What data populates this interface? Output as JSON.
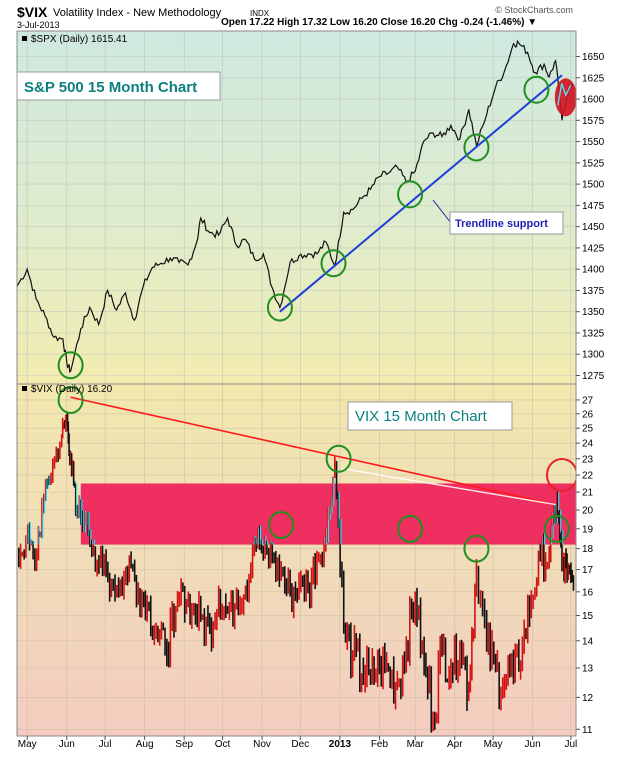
{
  "header": {
    "symbol": "$VIX",
    "name": "Volatility Index - New Methodology",
    "exchange": "INDX",
    "date": "3-Jul-2013",
    "ohlc_text": "Open 17.22  High 17.32  Low 16.20  Close 16.20  Chg -0.24 (-1.46%) ▼",
    "watermark": "© StockCharts.com"
  },
  "chart_data": [
    {
      "type": "line",
      "legend": "$SPX (Daily) 1615.41",
      "annotation": "S&P 500 15 Month Chart",
      "callout": "Trendline support",
      "ylim": [
        1265,
        1680
      ],
      "yticks": [
        1275,
        1300,
        1325,
        1350,
        1375,
        1400,
        1425,
        1450,
        1475,
        1500,
        1525,
        1550,
        1575,
        1600,
        1625,
        1650
      ],
      "x": [
        "2012-04-23",
        "2012-05-01",
        "2012-05-08",
        "2012-05-15",
        "2012-05-22",
        "2012-05-29",
        "2012-06-01",
        "2012-06-04",
        "2012-06-12",
        "2012-06-19",
        "2012-06-26",
        "2012-07-03",
        "2012-07-10",
        "2012-07-17",
        "2012-07-24",
        "2012-07-31",
        "2012-08-07",
        "2012-08-14",
        "2012-08-21",
        "2012-08-28",
        "2012-09-04",
        "2012-09-11",
        "2012-09-14",
        "2012-09-21",
        "2012-09-28",
        "2012-10-05",
        "2012-10-12",
        "2012-10-19",
        "2012-10-26",
        "2012-11-02",
        "2012-11-09",
        "2012-11-15",
        "2012-11-23",
        "2012-11-30",
        "2012-12-07",
        "2012-12-14",
        "2012-12-21",
        "2012-12-28",
        "2013-01-04",
        "2013-01-11",
        "2013-01-18",
        "2013-01-25",
        "2013-02-01",
        "2013-02-08",
        "2013-02-15",
        "2013-02-22",
        "2013-03-01",
        "2013-03-08",
        "2013-03-15",
        "2013-03-22",
        "2013-03-29",
        "2013-04-05",
        "2013-04-12",
        "2013-04-18",
        "2013-04-26",
        "2013-05-03",
        "2013-05-10",
        "2013-05-17",
        "2013-05-21",
        "2013-05-28",
        "2013-06-03",
        "2013-06-10",
        "2013-06-14",
        "2013-06-19",
        "2013-06-24",
        "2013-06-28",
        "2013-07-03"
      ],
      "values": [
        1380,
        1400,
        1365,
        1345,
        1320,
        1318,
        1290,
        1280,
        1330,
        1355,
        1335,
        1375,
        1352,
        1372,
        1340,
        1380,
        1402,
        1407,
        1413,
        1408,
        1405,
        1433,
        1460,
        1443,
        1440,
        1460,
        1428,
        1435,
        1412,
        1418,
        1378,
        1355,
        1408,
        1416,
        1418,
        1418,
        1432,
        1404,
        1467,
        1470,
        1483,
        1494,
        1509,
        1513,
        1520,
        1502,
        1515,
        1551,
        1560,
        1556,
        1569,
        1553,
        1588,
        1545,
        1582,
        1614,
        1633,
        1665,
        1666,
        1655,
        1631,
        1641,
        1626,
        1645,
        1575,
        1606,
        1615
      ],
      "trendline": {
        "x1": "2012-11-15",
        "y1": 1350,
        "x2": "2013-06-24",
        "y2": 1628,
        "color": "#1f3fd8"
      },
      "markers": [
        {
          "x": "2012-06-04",
          "y": 1287
        },
        {
          "x": "2012-11-15",
          "y": 1355
        },
        {
          "x": "2012-12-27",
          "y": 1407
        },
        {
          "x": "2013-02-25",
          "y": 1488
        },
        {
          "x": "2013-04-18",
          "y": 1543
        },
        {
          "x": "2013-06-04",
          "y": 1611
        }
      ],
      "highlight": {
        "x": "2013-06-27",
        "y": 1602,
        "color": "#d0121e"
      }
    },
    {
      "type": "line",
      "legend": "$VIX (Daily) 16.20",
      "annotation": "VIX 15 Month Chart",
      "yscale": "log",
      "ylim": [
        10.8,
        28.2
      ],
      "yticks": [
        11,
        12,
        13,
        14,
        15,
        16,
        17,
        18,
        19,
        20,
        21,
        22,
        23,
        24,
        25,
        26,
        27
      ],
      "resistance_band": {
        "y_low": 18.2,
        "y_high": 21.5,
        "color": "#ee1c56"
      },
      "x": [
        "2012-04-23",
        "2012-04-30",
        "2012-05-07",
        "2012-05-14",
        "2012-05-21",
        "2012-05-28",
        "2012-06-01",
        "2012-06-04",
        "2012-06-08",
        "2012-06-15",
        "2012-06-22",
        "2012-06-29",
        "2012-07-06",
        "2012-07-13",
        "2012-07-20",
        "2012-07-27",
        "2012-08-03",
        "2012-08-10",
        "2012-08-17",
        "2012-08-24",
        "2012-08-31",
        "2012-09-07",
        "2012-09-14",
        "2012-09-21",
        "2012-09-28",
        "2012-10-05",
        "2012-10-12",
        "2012-10-19",
        "2012-10-26",
        "2012-11-02",
        "2012-11-09",
        "2012-11-16",
        "2012-11-23",
        "2012-11-30",
        "2012-12-07",
        "2012-12-14",
        "2012-12-21",
        "2012-12-28",
        "2013-01-04",
        "2013-01-11",
        "2013-01-18",
        "2013-01-25",
        "2013-02-01",
        "2013-02-08",
        "2013-02-15",
        "2013-02-22",
        "2013-03-01",
        "2013-03-08",
        "2013-03-15",
        "2013-03-22",
        "2013-03-29",
        "2013-04-05",
        "2013-04-12",
        "2013-04-18",
        "2013-04-26",
        "2013-05-03",
        "2013-05-10",
        "2013-05-17",
        "2013-05-24",
        "2013-05-31",
        "2013-06-07",
        "2013-06-14",
        "2013-06-20",
        "2013-06-24",
        "2013-06-28",
        "2013-07-03"
      ],
      "values": [
        17.5,
        18.5,
        17.2,
        20.5,
        22.5,
        24.5,
        25.5,
        23.0,
        20.0,
        19.5,
        18.0,
        17.0,
        16.5,
        16.2,
        17.3,
        16.0,
        15.5,
        14.2,
        13.8,
        14.5,
        16.0,
        15.2,
        15.0,
        14.4,
        15.8,
        15.1,
        15.7,
        16.0,
        18.5,
        17.8,
        17.5,
        16.8,
        15.8,
        16.3,
        16.0,
        17.5,
        18.5,
        22.7,
        14.3,
        13.4,
        12.8,
        12.6,
        13.0,
        12.9,
        12.5,
        13.6,
        15.8,
        13.0,
        11.3,
        13.7,
        13.0,
        14.0,
        12.2,
        17.0,
        13.7,
        12.9,
        12.5,
        12.7,
        13.8,
        15.5,
        17.5,
        17.6,
        20.5,
        17.2,
        16.8,
        16.2
      ],
      "resistance_line": {
        "x1": "2012-06-04",
        "y1": 27.2,
        "x2": "2013-06-19",
        "y2": 20.3,
        "color": "#ff1a1a"
      },
      "markers": [
        {
          "x": "2012-06-04",
          "y": 27.0
        },
        {
          "x": "2012-11-16",
          "y": 19.2
        },
        {
          "x": "2012-12-31",
          "y": 23.0
        },
        {
          "x": "2013-02-25",
          "y": 19.0
        },
        {
          "x": "2013-04-18",
          "y": 18.0
        },
        {
          "x": "2013-06-20",
          "y": 19.0
        }
      ],
      "highlight_marker": {
        "x": "2013-06-24",
        "y": 22.0,
        "color": "#e8212b"
      }
    }
  ],
  "x_axis": {
    "labels": [
      {
        "date": "2012-05-01",
        "text": "May"
      },
      {
        "date": "2012-06-01",
        "text": "Jun"
      },
      {
        "date": "2012-07-01",
        "text": "Jul"
      },
      {
        "date": "2012-08-01",
        "text": "Aug"
      },
      {
        "date": "2012-09-01",
        "text": "Sep"
      },
      {
        "date": "2012-10-01",
        "text": "Oct"
      },
      {
        "date": "2012-11-01",
        "text": "Nov"
      },
      {
        "date": "2012-12-01",
        "text": "Dec"
      },
      {
        "date": "2013-01-01",
        "text": "2013"
      },
      {
        "date": "2013-02-01",
        "text": "Feb"
      },
      {
        "date": "2013-03-01",
        "text": "Mar"
      },
      {
        "date": "2013-04-01",
        "text": "Apr"
      },
      {
        "date": "2013-05-01",
        "text": "May"
      },
      {
        "date": "2013-06-01",
        "text": "Jun"
      },
      {
        "date": "2013-07-01",
        "text": "Jul"
      }
    ],
    "start": "2012-04-23",
    "end": "2013-07-05"
  },
  "colors": {
    "spx_line": "#111111",
    "vix_up": "#111111",
    "vix_down": "#d31212",
    "vix_in_band": "#3fd8f0",
    "circle": "#1f8f1f",
    "annotation_text": "#0f8080",
    "callout_text": "#1f1fb4"
  }
}
